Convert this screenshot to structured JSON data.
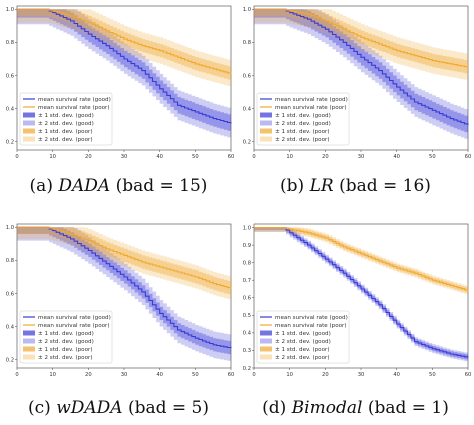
{
  "chart_data": [
    {
      "type": "line",
      "caption": {
        "label": "(a)",
        "name": "DADA",
        "rest": "(bad = 15)"
      },
      "xticks": [
        0,
        10,
        20,
        30,
        40,
        50,
        60
      ],
      "yticks": [
        0.2,
        0.4,
        0.6,
        0.8,
        1.0
      ],
      "xlim": [
        0,
        60
      ],
      "ylim": [
        0.15,
        1.02
      ],
      "legend_position": "lower-left",
      "legend": [
        "mean survival rate (good)",
        "mean survival rate (poor)",
        "± 1 std. dev. (good)",
        "± 2 std. dev. (good)",
        "± 1 std. dev. (poor)",
        "± 2 std. dev. (poor)"
      ],
      "series": [
        {
          "key": "good",
          "color": "#3a3ad6",
          "x": [
            0,
            8,
            10,
            15,
            20,
            25,
            30,
            35,
            40,
            45,
            50,
            55,
            60
          ],
          "y": [
            1.0,
            1.0,
            0.98,
            0.93,
            0.85,
            0.78,
            0.7,
            0.63,
            0.52,
            0.42,
            0.38,
            0.34,
            0.31
          ],
          "sd1": 0.05,
          "sd2": 0.09
        },
        {
          "key": "poor",
          "color": "#f0a830",
          "x": [
            0,
            8,
            10,
            15,
            20,
            25,
            30,
            35,
            40,
            45,
            50,
            55,
            60
          ],
          "y": [
            1.0,
            1.0,
            0.99,
            0.96,
            0.92,
            0.87,
            0.82,
            0.78,
            0.75,
            0.71,
            0.67,
            0.64,
            0.61
          ],
          "sd1": 0.04,
          "sd2": 0.08
        }
      ]
    },
    {
      "type": "line",
      "caption": {
        "label": "(b)",
        "name": "LR",
        "rest": "(bad = 16)"
      },
      "xticks": [
        0,
        10,
        20,
        30,
        40,
        50,
        60
      ],
      "yticks": [
        0.2,
        0.4,
        0.6,
        0.8,
        1.0
      ],
      "xlim": [
        0,
        60
      ],
      "ylim": [
        0.15,
        1.02
      ],
      "legend_position": "lower-left",
      "legend": [
        "mean survival rate (good)",
        "mean survival rate (poor)",
        "± 1 std. dev. (good)",
        "± 2 std. dev. (good)",
        "± 1 std. dev. (poor)",
        "± 2 std. dev. (poor)"
      ],
      "series": [
        {
          "key": "good",
          "color": "#3a3ad6",
          "x": [
            0,
            8,
            10,
            15,
            20,
            25,
            30,
            35,
            40,
            45,
            50,
            55,
            60
          ],
          "y": [
            1.0,
            1.0,
            0.98,
            0.94,
            0.88,
            0.8,
            0.71,
            0.63,
            0.53,
            0.44,
            0.39,
            0.34,
            0.3
          ],
          "sd1": 0.05,
          "sd2": 0.09
        },
        {
          "key": "poor",
          "color": "#f0a830",
          "x": [
            0,
            8,
            10,
            15,
            20,
            25,
            30,
            35,
            40,
            45,
            50,
            55,
            60
          ],
          "y": [
            1.0,
            1.0,
            0.99,
            0.97,
            0.93,
            0.88,
            0.83,
            0.79,
            0.75,
            0.72,
            0.69,
            0.67,
            0.65
          ],
          "sd1": 0.04,
          "sd2": 0.08
        }
      ]
    },
    {
      "type": "line",
      "caption": {
        "label": "(c)",
        "name": "wDADA",
        "rest": "(bad = 5)"
      },
      "xticks": [
        0,
        10,
        20,
        30,
        40,
        50,
        60
      ],
      "yticks": [
        0.2,
        0.4,
        0.6,
        0.8,
        1.0
      ],
      "xlim": [
        0,
        60
      ],
      "ylim": [
        0.15,
        1.02
      ],
      "legend_position": "lower-left",
      "legend": [
        "mean survival rate (good)",
        "mean survival rate (poor)",
        "± 1 std. dev. (good)",
        "± 2 std. dev. (good)",
        "± 1 std. dev. (poor)",
        "± 2 std. dev. (poor)"
      ],
      "series": [
        {
          "key": "good",
          "color": "#3a3ad6",
          "x": [
            0,
            8,
            10,
            15,
            20,
            25,
            30,
            35,
            40,
            45,
            50,
            55,
            60
          ],
          "y": [
            1.0,
            1.0,
            0.98,
            0.93,
            0.86,
            0.78,
            0.7,
            0.61,
            0.48,
            0.38,
            0.33,
            0.29,
            0.27
          ],
          "sd1": 0.04,
          "sd2": 0.08
        },
        {
          "key": "poor",
          "color": "#f0a830",
          "x": [
            0,
            8,
            10,
            15,
            20,
            25,
            30,
            35,
            40,
            45,
            50,
            55,
            60
          ],
          "y": [
            1.0,
            1.0,
            0.99,
            0.96,
            0.92,
            0.87,
            0.83,
            0.79,
            0.76,
            0.73,
            0.7,
            0.66,
            0.63
          ],
          "sd1": 0.04,
          "sd2": 0.07
        }
      ]
    },
    {
      "type": "line",
      "caption": {
        "label": "(d)",
        "name": "Bimodal",
        "rest": "(bad = 1)"
      },
      "xticks": [
        0,
        10,
        20,
        30,
        40,
        50,
        60
      ],
      "yticks": [
        0.2,
        0.3,
        0.4,
        0.5,
        0.6,
        0.7,
        0.8,
        0.9,
        1.0
      ],
      "xlim": [
        0,
        60
      ],
      "ylim": [
        0.2,
        1.02
      ],
      "legend_position": "lower-left",
      "legend": [
        "mean survival rate (good)",
        "mean survival rate (poor)",
        "± 1 std. dev. (good)",
        "± 2 std. dev. (good)",
        "± 1 std. dev. (poor)",
        "± 2 std. dev. (poor)"
      ],
      "series": [
        {
          "key": "good",
          "color": "#3a3ad6",
          "x": [
            0,
            8,
            10,
            15,
            20,
            25,
            30,
            35,
            40,
            45,
            50,
            55,
            60
          ],
          "y": [
            1.0,
            1.0,
            0.97,
            0.9,
            0.82,
            0.74,
            0.65,
            0.56,
            0.45,
            0.35,
            0.31,
            0.28,
            0.26
          ],
          "sd1": 0.015,
          "sd2": 0.025
        },
        {
          "key": "poor",
          "color": "#f0a830",
          "x": [
            0,
            8,
            10,
            15,
            20,
            25,
            30,
            35,
            40,
            45,
            50,
            55,
            60
          ],
          "y": [
            1.0,
            1.0,
            0.99,
            0.97,
            0.94,
            0.89,
            0.85,
            0.81,
            0.77,
            0.74,
            0.7,
            0.67,
            0.64
          ],
          "sd1": 0.015,
          "sd2": 0.025
        }
      ]
    }
  ]
}
